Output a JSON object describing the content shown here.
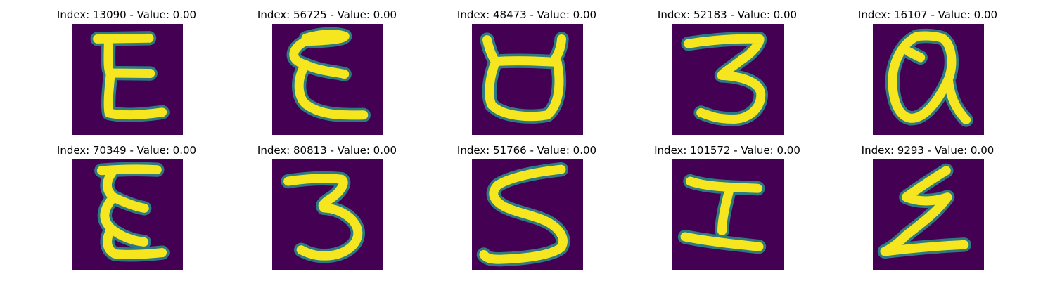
{
  "colors": {
    "background": "#ffffff",
    "image_background": "#440154",
    "stroke": "#f5e61f",
    "stroke_edge": "#2a8f8c"
  },
  "panels": [
    {
      "title": "Index: 13090 - Value: 0.00"
    },
    {
      "title": "Index: 56725 - Value: 0.00"
    },
    {
      "title": "Index: 48473 - Value: 0.00"
    },
    {
      "title": "Index: 52183 - Value: 0.00"
    },
    {
      "title": "Index: 16107 - Value: 0.00"
    },
    {
      "title": "Index: 70349 - Value: 0.00"
    },
    {
      "title": "Index: 80813 - Value: 0.00"
    },
    {
      "title": "Index: 51766 - Value: 0.00"
    },
    {
      "title": "Index: 101572 - Value: 0.00"
    },
    {
      "title": "Index: 9293 - Value: 0.00"
    }
  ]
}
